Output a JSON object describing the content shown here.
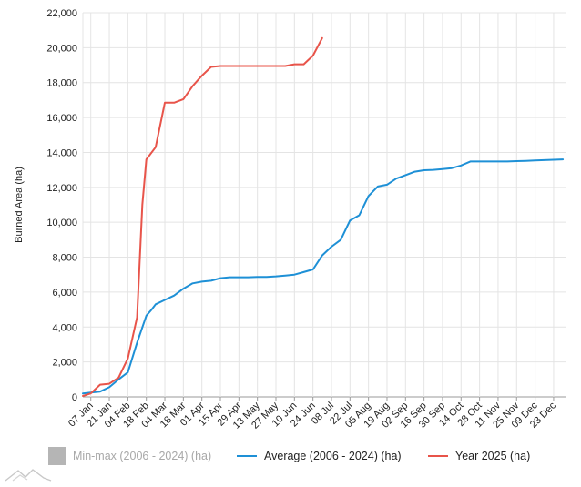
{
  "chart_data": {
    "type": "line",
    "ylabel": "Burned Area (ha)",
    "ylim": [
      0,
      22000
    ],
    "yticks": [
      "0",
      "2,000",
      "4,000",
      "6,000",
      "8,000",
      "10,000",
      "12,000",
      "14,000",
      "16,000",
      "18,000",
      "20,000",
      "22,000"
    ],
    "ytick_values": [
      0,
      2000,
      4000,
      6000,
      8000,
      10000,
      12000,
      14000,
      16000,
      18000,
      20000,
      22000
    ],
    "grid": true,
    "x_domain": [
      0,
      365
    ],
    "xticks": [
      "07 Jan",
      "21 Jan",
      "04 Feb",
      "18 Feb",
      "04 Mar",
      "18 Mar",
      "01 Apr",
      "15 Apr",
      "29 Apr",
      "13 May",
      "27 May",
      "10 Jun",
      "24 Jun",
      "08 Jul",
      "22 Jul",
      "05 Aug",
      "19 Aug",
      "02 Sep",
      "16 Sep",
      "30 Sep",
      "14 Oct",
      "28 Oct",
      "11 Nov",
      "25 Nov",
      "09 Dec",
      "23 Dec"
    ],
    "xtick_days": [
      6,
      20,
      34,
      48,
      62,
      76,
      90,
      104,
      118,
      132,
      146,
      160,
      174,
      188,
      202,
      216,
      230,
      244,
      258,
      272,
      286,
      300,
      314,
      328,
      342,
      356
    ],
    "legend": [
      {
        "name": "Min-max (2006 - 2024) (ha)",
        "color": "#b5b5b5",
        "kind": "band"
      },
      {
        "name": "Average (2006 - 2024) (ha)",
        "color": "#1e90d6",
        "kind": "line"
      },
      {
        "name": "Year 2025 (ha)",
        "color": "#e8544a",
        "kind": "line"
      }
    ],
    "series": [
      {
        "name": "Average (2006 - 2024) (ha)",
        "color": "#1e90d6",
        "x": [
          0,
          6,
          13,
          20,
          27,
          34,
          41,
          48,
          52,
          55,
          62,
          69,
          76,
          83,
          90,
          97,
          104,
          111,
          118,
          125,
          132,
          139,
          146,
          153,
          160,
          167,
          174,
          181,
          188,
          195,
          202,
          209,
          216,
          223,
          230,
          237,
          244,
          251,
          258,
          265,
          272,
          279,
          286,
          293,
          300,
          307,
          314,
          321,
          328,
          335,
          342,
          349,
          356,
          363
        ],
        "values": [
          200,
          250,
          300,
          550,
          1000,
          1400,
          3100,
          4650,
          5000,
          5300,
          5550,
          5800,
          6200,
          6500,
          6600,
          6650,
          6800,
          6850,
          6850,
          6850,
          6870,
          6870,
          6900,
          6950,
          7000,
          7150,
          7300,
          8100,
          8600,
          9000,
          10100,
          10400,
          11500,
          12050,
          12150,
          12500,
          12700,
          12900,
          12980,
          13000,
          13050,
          13100,
          13250,
          13480,
          13480,
          13480,
          13480,
          13480,
          13500,
          13520,
          13540,
          13560,
          13580,
          13600
        ]
      },
      {
        "name": "Year 2025 (ha)",
        "color": "#e8544a",
        "x": [
          0,
          6,
          13,
          20,
          27,
          34,
          41,
          45,
          48,
          55,
          62,
          66,
          69,
          76,
          83,
          90,
          97,
          104,
          111,
          118,
          125,
          132,
          139,
          146,
          153,
          160,
          167,
          174,
          181
        ],
        "values": [
          50,
          200,
          700,
          750,
          1100,
          2200,
          4550,
          11000,
          13600,
          14300,
          16850,
          16850,
          16850,
          17050,
          17800,
          18400,
          18900,
          18950,
          18950,
          18950,
          18950,
          18950,
          18950,
          18950,
          18950,
          19050,
          19050,
          19550,
          20550
        ]
      }
    ]
  }
}
